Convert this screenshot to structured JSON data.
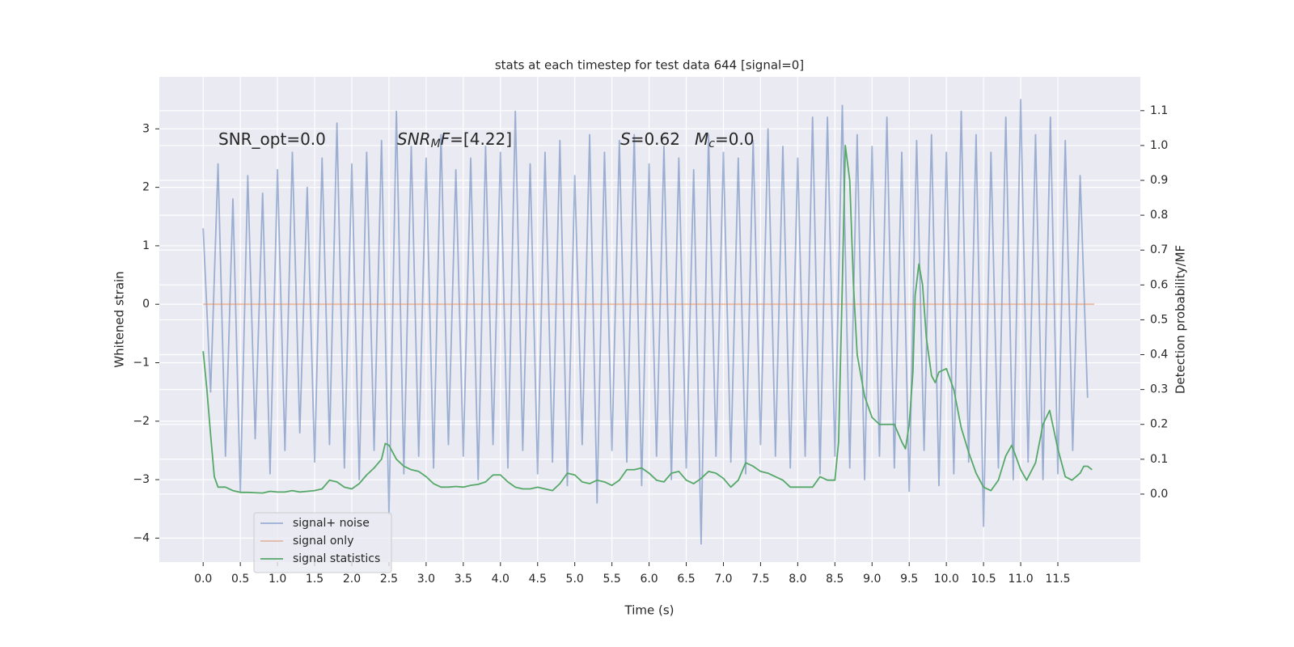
{
  "chart_data": {
    "type": "line",
    "title": "stats at each timestep for test data 644 [signal=0]",
    "x_label": "Time (s)",
    "y_label": "Whitened strain",
    "y2_label": "Detection probability/MF",
    "grid": true,
    "legend": "lower left",
    "xlim": [
      -0.59,
      12.61
    ],
    "ylim": [
      -4.41,
      3.89
    ],
    "y2lim": [
      -0.195,
      1.197
    ],
    "xticks": [
      {
        "value": 0,
        "label": "0.0"
      },
      0.5,
      {
        "value": 1,
        "label": "1.0"
      },
      1.5,
      {
        "value": 2,
        "label": "2.0"
      },
      2.5,
      {
        "value": 3,
        "label": "3.0"
      },
      3.5,
      {
        "value": 4,
        "label": "4.0"
      },
      4.5,
      {
        "value": 5,
        "label": "5.0"
      },
      5.5,
      {
        "value": 6,
        "label": "6.0"
      },
      6.5,
      {
        "value": 7,
        "label": "7.0"
      },
      7.5,
      {
        "value": 8,
        "label": "8.0"
      },
      8.5,
      {
        "value": 9,
        "label": "9.0"
      },
      9.5,
      {
        "value": 10,
        "label": "10.0"
      },
      10.5,
      {
        "value": 11,
        "label": "11.0"
      },
      11.5
    ],
    "yticks": [
      {
        "value": -4,
        "label": "−4"
      },
      {
        "value": -3,
        "label": "−3"
      },
      {
        "value": -2,
        "label": "−2"
      },
      {
        "value": -1,
        "label": "−1"
      },
      0,
      1,
      2,
      3
    ],
    "y2ticks": [
      {
        "value": 0,
        "label": "0.0"
      },
      0.1,
      0.2,
      0.3,
      0.4,
      0.5,
      0.6,
      0.7,
      0.8,
      0.9,
      {
        "value": 1,
        "label": "1.0"
      },
      1.1
    ],
    "annotations": [
      [
        {
          "text": "SNR_opt=0.0",
          "style": "normal"
        }
      ],
      [
        {
          "text": "SNR",
          "style": "italic"
        },
        {
          "text": "M",
          "style": "sub"
        },
        {
          "text": "F",
          "style": "italic"
        },
        {
          "text": "=[4.22]",
          "style": "normal"
        }
      ],
      [
        {
          "text": "S",
          "style": "italic"
        },
        {
          "text": "=0.62",
          "style": "normal"
        }
      ],
      [
        {
          "text": "M",
          "style": "italic"
        },
        {
          "text": "c",
          "style": "sub"
        },
        {
          "text": "=0.0",
          "style": "normal"
        }
      ]
    ],
    "series": [
      {
        "name": "signal+ noise",
        "color": "#4c72b0",
        "alpha": 0.5,
        "x": [
          0,
          0.1,
          0.2,
          0.3,
          0.4,
          0.5,
          0.6,
          0.7,
          0.8,
          0.9,
          1,
          1.1,
          1.2,
          1.3,
          1.4,
          1.5,
          1.6,
          1.7,
          1.8,
          1.9,
          2,
          2.1,
          2.2,
          2.3,
          2.4,
          2.5,
          2.6,
          2.7,
          2.8,
          2.9,
          3,
          3.1,
          3.2,
          3.3,
          3.4,
          3.5,
          3.6,
          3.7,
          3.8,
          3.9,
          4,
          4.1,
          4.2,
          4.3,
          4.4,
          4.5,
          4.6,
          4.7,
          4.8,
          4.9,
          5,
          5.1,
          5.2,
          5.3,
          5.4,
          5.5,
          5.6,
          5.7,
          5.8,
          5.9,
          6,
          6.1,
          6.2,
          6.3,
          6.4,
          6.5,
          6.6,
          6.7,
          6.8,
          6.9,
          7,
          7.1,
          7.2,
          7.3,
          7.4,
          7.5,
          7.6,
          7.7,
          7.8,
          7.9,
          8,
          8.1,
          8.2,
          8.3,
          8.4,
          8.5,
          8.6,
          8.7,
          8.8,
          8.9,
          9,
          9.1,
          9.2,
          9.3,
          9.4,
          9.5,
          9.6,
          9.7,
          9.8,
          9.9,
          10,
          10.1,
          10.2,
          10.3,
          10.4,
          10.5,
          10.6,
          10.7,
          10.8,
          10.9,
          11,
          11.1,
          11.2,
          11.3,
          11.4,
          11.5,
          11.6,
          11.7,
          11.8,
          11.9
        ],
        "values": [
          1.3,
          -1.5,
          2.4,
          -2.6,
          1.8,
          -3.2,
          2.2,
          -2.3,
          1.9,
          -2.9,
          2.3,
          -2.5,
          2.6,
          -2.2,
          2.0,
          -2.7,
          2.5,
          -2.4,
          3.1,
          -2.8,
          2.4,
          -3.0,
          2.6,
          -2.5,
          2.8,
          -3.6,
          3.3,
          -2.9,
          2.7,
          -2.6,
          2.5,
          -2.8,
          2.9,
          -2.4,
          2.3,
          -2.6,
          2.5,
          -3.0,
          2.7,
          -2.4,
          2.6,
          -2.8,
          3.3,
          -2.5,
          2.4,
          -2.9,
          2.6,
          -2.7,
          2.8,
          -3.1,
          2.2,
          -2.4,
          2.9,
          -3.4,
          2.6,
          -2.5,
          2.8,
          -2.7,
          2.9,
          -3.1,
          2.4,
          -2.6,
          2.7,
          -3.0,
          2.5,
          -2.8,
          2.3,
          -4.1,
          2.9,
          -2.6,
          2.6,
          -2.7,
          2.5,
          -2.9,
          2.8,
          -2.4,
          3.0,
          -2.6,
          2.7,
          -2.8,
          2.5,
          -2.6,
          3.2,
          -2.9,
          3.2,
          -2.6,
          3.4,
          -2.8,
          2.9,
          -3.0,
          2.7,
          -2.6,
          3.2,
          -2.8,
          2.6,
          -3.2,
          2.8,
          -2.5,
          2.9,
          -3.1,
          2.6,
          -2.9,
          3.3,
          -2.7,
          2.9,
          -3.8,
          2.6,
          -2.8,
          3.2,
          -3.0,
          3.5,
          -2.7,
          2.9,
          -3.0,
          3.2,
          -2.9,
          2.8,
          -2.5,
          2.2,
          -1.6
        ]
      },
      {
        "name": "signal only",
        "color": "#dd8452",
        "alpha": 0.5,
        "x": [
          0,
          11.99
        ],
        "values": [
          0,
          0
        ]
      },
      {
        "name": "signal statistics",
        "color": "#55a868",
        "alpha": 1,
        "axis": "y2",
        "x": [
          0,
          0.05,
          0.1,
          0.15,
          0.2,
          0.3,
          0.4,
          0.5,
          0.6,
          0.7,
          0.8,
          0.9,
          1,
          1.1,
          1.2,
          1.3,
          1.4,
          1.5,
          1.6,
          1.7,
          1.8,
          1.9,
          2,
          2.1,
          2.2,
          2.3,
          2.4,
          2.45,
          2.5,
          2.6,
          2.7,
          2.8,
          2.9,
          3,
          3.1,
          3.2,
          3.3,
          3.4,
          3.5,
          3.6,
          3.7,
          3.8,
          3.9,
          4,
          4.1,
          4.2,
          4.3,
          4.4,
          4.5,
          4.6,
          4.7,
          4.8,
          4.9,
          5,
          5.1,
          5.2,
          5.3,
          5.4,
          5.5,
          5.6,
          5.7,
          5.8,
          5.9,
          6,
          6.1,
          6.2,
          6.3,
          6.4,
          6.5,
          6.6,
          6.7,
          6.8,
          6.9,
          7,
          7.1,
          7.2,
          7.3,
          7.4,
          7.5,
          7.6,
          7.7,
          7.8,
          7.9,
          8,
          8.1,
          8.2,
          8.3,
          8.4,
          8.5,
          8.55,
          8.6,
          8.64,
          8.7,
          8.75,
          8.8,
          8.9,
          9,
          9.1,
          9.2,
          9.3,
          9.4,
          9.45,
          9.5,
          9.55,
          9.58,
          9.63,
          9.68,
          9.73,
          9.8,
          9.85,
          9.9,
          10,
          10.1,
          10.2,
          10.3,
          10.4,
          10.5,
          10.6,
          10.7,
          10.8,
          10.88,
          11,
          11.08,
          11.2,
          11.3,
          11.39,
          11.5,
          11.6,
          11.69,
          11.8,
          11.85,
          11.9,
          11.96
        ],
        "values": [
          0.41,
          0.3,
          0.17,
          0.05,
          0.02,
          0.02,
          0.01,
          0.005,
          0.005,
          0.004,
          0.003,
          0.008,
          0.006,
          0.006,
          0.01,
          0.006,
          0.008,
          0.01,
          0.015,
          0.04,
          0.035,
          0.02,
          0.015,
          0.03,
          0.055,
          0.075,
          0.1,
          0.145,
          0.14,
          0.1,
          0.08,
          0.07,
          0.065,
          0.05,
          0.03,
          0.02,
          0.02,
          0.022,
          0.02,
          0.025,
          0.028,
          0.035,
          0.055,
          0.055,
          0.035,
          0.02,
          0.015,
          0.015,
          0.02,
          0.015,
          0.01,
          0.03,
          0.06,
          0.055,
          0.035,
          0.03,
          0.04,
          0.035,
          0.025,
          0.04,
          0.07,
          0.07,
          0.075,
          0.06,
          0.04,
          0.035,
          0.06,
          0.065,
          0.04,
          0.03,
          0.045,
          0.065,
          0.06,
          0.045,
          0.02,
          0.04,
          0.09,
          0.08,
          0.065,
          0.06,
          0.05,
          0.04,
          0.02,
          0.02,
          0.02,
          0.02,
          0.05,
          0.04,
          0.04,
          0.15,
          0.6,
          1.0,
          0.9,
          0.6,
          0.4,
          0.28,
          0.22,
          0.2,
          0.2,
          0.2,
          0.15,
          0.13,
          0.2,
          0.35,
          0.57,
          0.66,
          0.6,
          0.45,
          0.34,
          0.32,
          0.35,
          0.36,
          0.3,
          0.19,
          0.12,
          0.06,
          0.02,
          0.01,
          0.04,
          0.11,
          0.14,
          0.07,
          0.04,
          0.09,
          0.2,
          0.24,
          0.13,
          0.05,
          0.04,
          0.06,
          0.08,
          0.08,
          0.07
        ]
      }
    ]
  }
}
